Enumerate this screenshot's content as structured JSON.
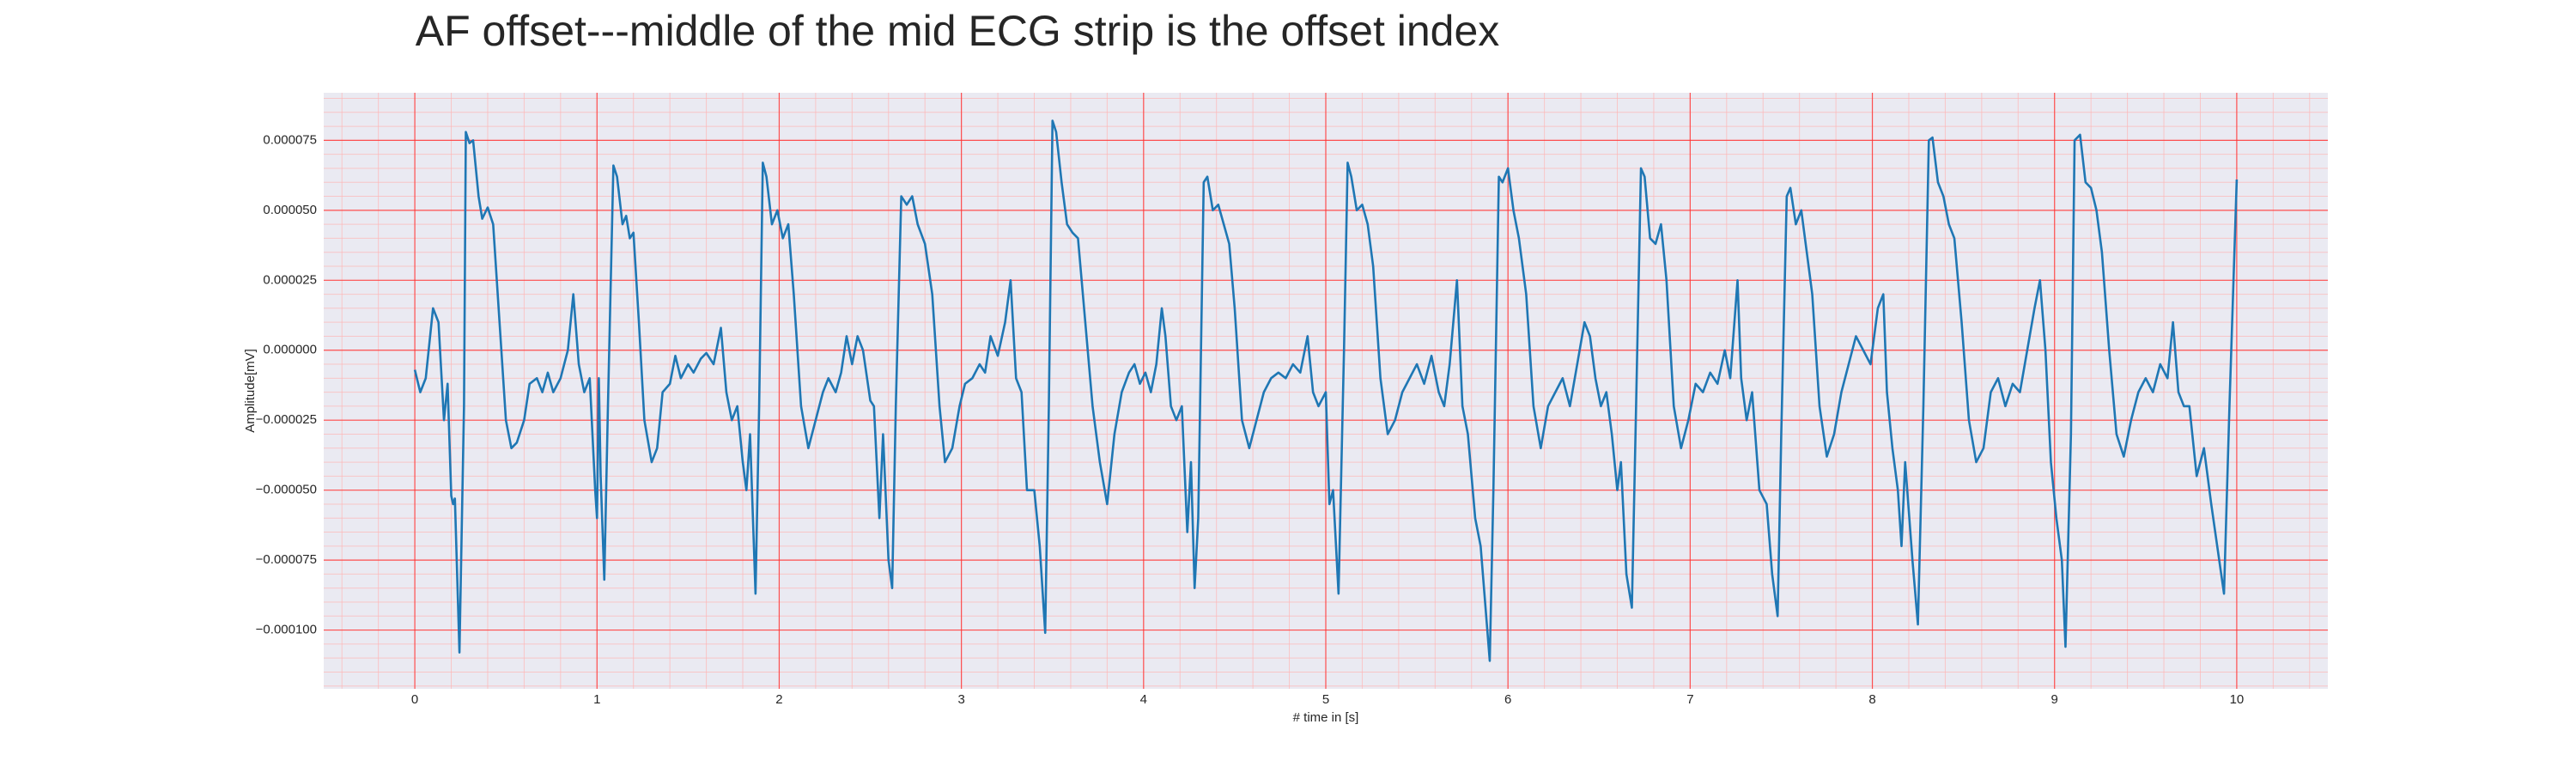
{
  "chart_data": {
    "type": "line",
    "title": "AF offset---middle of the mid ECG strip is the offset index",
    "x_label": "# time in [s]",
    "y_label": "Amplitude[mV]",
    "color": "#1f77b4",
    "grid": true,
    "xlim": [
      -0.5,
      10.5
    ],
    "ylim": [
      -0.000121,
      9.2e-05
    ],
    "xticks": [
      0,
      1,
      2,
      3,
      4,
      5,
      6,
      7,
      8,
      9,
      10
    ],
    "yticks": [
      {
        "value": -0.0001,
        "label": "−0.000100"
      },
      {
        "value": -7.5e-05,
        "label": "−0.000075"
      },
      {
        "value": -5e-05,
        "label": "−0.000050"
      },
      {
        "value": -2.5e-05,
        "label": "−0.000025"
      },
      {
        "value": 0,
        "label": "0.000000"
      },
      {
        "value": 2.5e-05,
        "label": "0.000025"
      },
      {
        "value": 5e-05,
        "label": "0.000050"
      },
      {
        "value": 7.5e-05,
        "label": "0.000075"
      }
    ],
    "x": [
      0,
      0.03,
      0.06,
      0.1,
      0.13,
      0.16,
      0.18,
      0.2,
      0.21,
      0.22,
      0.245,
      0.27,
      0.28,
      0.3,
      0.32,
      0.35,
      0.37,
      0.4,
      0.43,
      0.46,
      0.5,
      0.53,
      0.56,
      0.6,
      0.63,
      0.67,
      0.7,
      0.73,
      0.76,
      0.8,
      0.84,
      0.87,
      0.9,
      0.93,
      0.96,
      0.99,
      1.0,
      1.01,
      1.02,
      1.04,
      1.06,
      1.09,
      1.11,
      1.14,
      1.16,
      1.18,
      1.2,
      1.23,
      1.26,
      1.3,
      1.33,
      1.36,
      1.4,
      1.43,
      1.46,
      1.5,
      1.53,
      1.57,
      1.6,
      1.64,
      1.68,
      1.71,
      1.74,
      1.77,
      1.8,
      1.82,
      1.84,
      1.87,
      1.89,
      1.91,
      1.93,
      1.96,
      1.99,
      2.02,
      2.05,
      2.08,
      2.12,
      2.16,
      2.2,
      2.24,
      2.27,
      2.31,
      2.34,
      2.37,
      2.4,
      2.43,
      2.46,
      2.5,
      2.52,
      2.55,
      2.57,
      2.6,
      2.62,
      2.64,
      2.67,
      2.7,
      2.73,
      2.76,
      2.8,
      2.84,
      2.88,
      2.91,
      2.95,
      2.99,
      3.02,
      3.06,
      3.1,
      3.13,
      3.16,
      3.2,
      3.24,
      3.27,
      3.3,
      3.33,
      3.36,
      3.4,
      3.43,
      3.46,
      3.48,
      3.5,
      3.52,
      3.55,
      3.58,
      3.61,
      3.64,
      3.68,
      3.72,
      3.76,
      3.8,
      3.84,
      3.88,
      3.92,
      3.95,
      3.98,
      4.01,
      4.04,
      4.07,
      4.1,
      4.12,
      4.15,
      4.18,
      4.21,
      4.24,
      4.26,
      4.28,
      4.3,
      4.33,
      4.35,
      4.38,
      4.41,
      4.44,
      4.47,
      4.5,
      4.54,
      4.58,
      4.62,
      4.66,
      4.7,
      4.74,
      4.78,
      4.82,
      4.86,
      4.9,
      4.93,
      4.96,
      5.0,
      5.02,
      5.04,
      5.07,
      5.1,
      5.12,
      5.14,
      5.17,
      5.2,
      5.23,
      5.26,
      5.3,
      5.34,
      5.38,
      5.42,
      5.46,
      5.5,
      5.54,
      5.58,
      5.62,
      5.65,
      5.68,
      5.72,
      5.75,
      5.78,
      5.82,
      5.85,
      5.9,
      5.92,
      5.95,
      5.97,
      6.0,
      6.03,
      6.06,
      6.1,
      6.14,
      6.18,
      6.22,
      6.26,
      6.3,
      6.34,
      6.38,
      6.42,
      6.45,
      6.48,
      6.51,
      6.54,
      6.57,
      6.6,
      6.62,
      6.65,
      6.68,
      6.7,
      6.73,
      6.75,
      6.78,
      6.81,
      6.84,
      6.87,
      6.91,
      6.95,
      6.99,
      7.03,
      7.07,
      7.11,
      7.15,
      7.19,
      7.22,
      7.26,
      7.28,
      7.31,
      7.34,
      7.38,
      7.42,
      7.45,
      7.48,
      7.5,
      7.53,
      7.55,
      7.58,
      7.61,
      7.64,
      7.67,
      7.71,
      7.75,
      7.79,
      7.83,
      7.87,
      7.91,
      7.95,
      7.99,
      8.03,
      8.06,
      8.08,
      8.11,
      8.14,
      8.16,
      8.18,
      8.22,
      8.25,
      8.28,
      8.31,
      8.33,
      8.36,
      8.39,
      8.42,
      8.45,
      8.49,
      8.53,
      8.57,
      8.61,
      8.65,
      8.69,
      8.73,
      8.77,
      8.81,
      8.85,
      8.89,
      8.92,
      8.95,
      8.98,
      9.01,
      9.04,
      9.06,
      9.09,
      9.11,
      9.14,
      9.17,
      9.2,
      9.23,
      9.26,
      9.3,
      9.34,
      9.38,
      9.42,
      9.46,
      9.5,
      9.54,
      9.58,
      9.62,
      9.65,
      9.68,
      9.71,
      9.74,
      9.78,
      9.82,
      9.86,
      9.93,
      9.96,
      10
    ],
    "values": [
      -7e-06,
      -1.5e-05,
      -1e-05,
      1.5e-05,
      1e-05,
      -2.5e-05,
      -1.2e-05,
      -5.2e-05,
      -5.5e-05,
      -5.3e-05,
      -0.000108,
      -2e-05,
      7.8e-05,
      7.4e-05,
      7.5e-05,
      5.5e-05,
      4.7e-05,
      5.1e-05,
      4.5e-05,
      1.5e-05,
      -2.5e-05,
      -3.5e-05,
      -3.3e-05,
      -2.5e-05,
      -1.2e-05,
      -1e-05,
      -1.5e-05,
      -8e-06,
      -1.5e-05,
      -1e-05,
      0,
      2e-05,
      -5e-06,
      -1.5e-05,
      -1e-05,
      -5e-05,
      -6e-05,
      -1e-05,
      -4.5e-05,
      -8.2e-05,
      -2e-05,
      6.6e-05,
      6.2e-05,
      4.5e-05,
      4.8e-05,
      4e-05,
      4.2e-05,
      1e-05,
      -2.5e-05,
      -4e-05,
      -3.5e-05,
      -1.5e-05,
      -1.2e-05,
      -2e-06,
      -1e-05,
      -5e-06,
      -8e-06,
      -3e-06,
      -1e-06,
      -5e-06,
      8e-06,
      -1.5e-05,
      -2.5e-05,
      -2e-05,
      -4e-05,
      -5e-05,
      -3e-05,
      -8.7e-05,
      -2e-05,
      6.7e-05,
      6.2e-05,
      4.5e-05,
      5e-05,
      4e-05,
      4.5e-05,
      2e-05,
      -2e-05,
      -3.5e-05,
      -2.5e-05,
      -1.5e-05,
      -1e-05,
      -1.5e-05,
      -8e-06,
      5e-06,
      -5e-06,
      5e-06,
      0,
      -1.8e-05,
      -2e-05,
      -6e-05,
      -3e-05,
      -7.5e-05,
      -8.5e-05,
      -2e-05,
      5.5e-05,
      5.2e-05,
      5.5e-05,
      4.5e-05,
      3.8e-05,
      2e-05,
      -2e-05,
      -4e-05,
      -3.5e-05,
      -2e-05,
      -1.2e-05,
      -1e-05,
      -5e-06,
      -8e-06,
      5e-06,
      -2e-06,
      1e-05,
      2.5e-05,
      -1e-05,
      -1.5e-05,
      -5e-05,
      -5e-05,
      -7e-05,
      -0.000101,
      -2e-05,
      8.2e-05,
      7.8e-05,
      6e-05,
      4.5e-05,
      4.2e-05,
      4e-05,
      1e-05,
      -2e-05,
      -4e-05,
      -5.5e-05,
      -3e-05,
      -1.5e-05,
      -8e-06,
      -5e-06,
      -1.2e-05,
      -8e-06,
      -1.5e-05,
      -5e-06,
      1.5e-05,
      5e-06,
      -2e-05,
      -2.5e-05,
      -2e-05,
      -6.5e-05,
      -4e-05,
      -8.5e-05,
      -6e-05,
      6e-05,
      6.2e-05,
      5e-05,
      5.2e-05,
      4.5e-05,
      3.8e-05,
      1.5e-05,
      -2.5e-05,
      -3.5e-05,
      -2.5e-05,
      -1.5e-05,
      -1e-05,
      -8e-06,
      -1e-05,
      -5e-06,
      -8e-06,
      5e-06,
      -1.5e-05,
      -2e-05,
      -1.5e-05,
      -5.5e-05,
      -5e-05,
      -8.7e-05,
      0,
      6.7e-05,
      6.2e-05,
      5e-05,
      5.2e-05,
      4.5e-05,
      3e-05,
      -1e-05,
      -3e-05,
      -2.5e-05,
      -1.5e-05,
      -1e-05,
      -5e-06,
      -1.2e-05,
      -2e-06,
      -1.5e-05,
      -2e-05,
      -5e-06,
      2.5e-05,
      -2e-05,
      -3e-05,
      -6e-05,
      -7e-05,
      -0.000111,
      -5e-05,
      6.2e-05,
      6e-05,
      6.5e-05,
      5e-05,
      4e-05,
      2e-05,
      -2e-05,
      -3.5e-05,
      -2e-05,
      -1.5e-05,
      -1e-05,
      -2e-05,
      -5e-06,
      1e-05,
      5e-06,
      -1e-05,
      -2e-05,
      -1.5e-05,
      -3e-05,
      -5e-05,
      -4e-05,
      -8e-05,
      -9.2e-05,
      -3e-05,
      6.5e-05,
      6.2e-05,
      4e-05,
      3.8e-05,
      4.5e-05,
      2.5e-05,
      -2e-05,
      -3.5e-05,
      -2.5e-05,
      -1.2e-05,
      -1.5e-05,
      -8e-06,
      -1.2e-05,
      0,
      -1e-05,
      2.5e-05,
      -1e-05,
      -2.5e-05,
      -1.5e-05,
      -5e-05,
      -5.5e-05,
      -8e-05,
      -9.5e-05,
      -3e-05,
      5.5e-05,
      5.8e-05,
      4.5e-05,
      5e-05,
      3.5e-05,
      2e-05,
      -2e-05,
      -3.8e-05,
      -3e-05,
      -1.5e-05,
      -5e-06,
      5e-06,
      0,
      -5e-06,
      1.5e-05,
      2e-05,
      -1.5e-05,
      -3.5e-05,
      -5e-05,
      -7e-05,
      -4e-05,
      -7.5e-05,
      -9.8e-05,
      -2e-05,
      7.5e-05,
      7.6e-05,
      6e-05,
      5.5e-05,
      4.5e-05,
      4e-05,
      1e-05,
      -2.5e-05,
      -4e-05,
      -3.5e-05,
      -1.5e-05,
      -1e-05,
      -2e-05,
      -1.2e-05,
      -1.5e-05,
      0,
      1.5e-05,
      2.5e-05,
      0,
      -4e-05,
      -6e-05,
      -7.5e-05,
      -0.000106,
      -3e-05,
      7.5e-05,
      7.7e-05,
      6e-05,
      5.8e-05,
      5e-05,
      3.5e-05,
      0,
      -3e-05,
      -3.8e-05,
      -2.5e-05,
      -1.5e-05,
      -1e-05,
      -1.5e-05,
      -5e-06,
      -1e-05,
      1e-05,
      -1.5e-05,
      -2e-05,
      -2e-05,
      -4.5e-05,
      -3.5e-05,
      -5.5e-05,
      -8.7e-05,
      -2e-05,
      6.1e-05
    ]
  }
}
